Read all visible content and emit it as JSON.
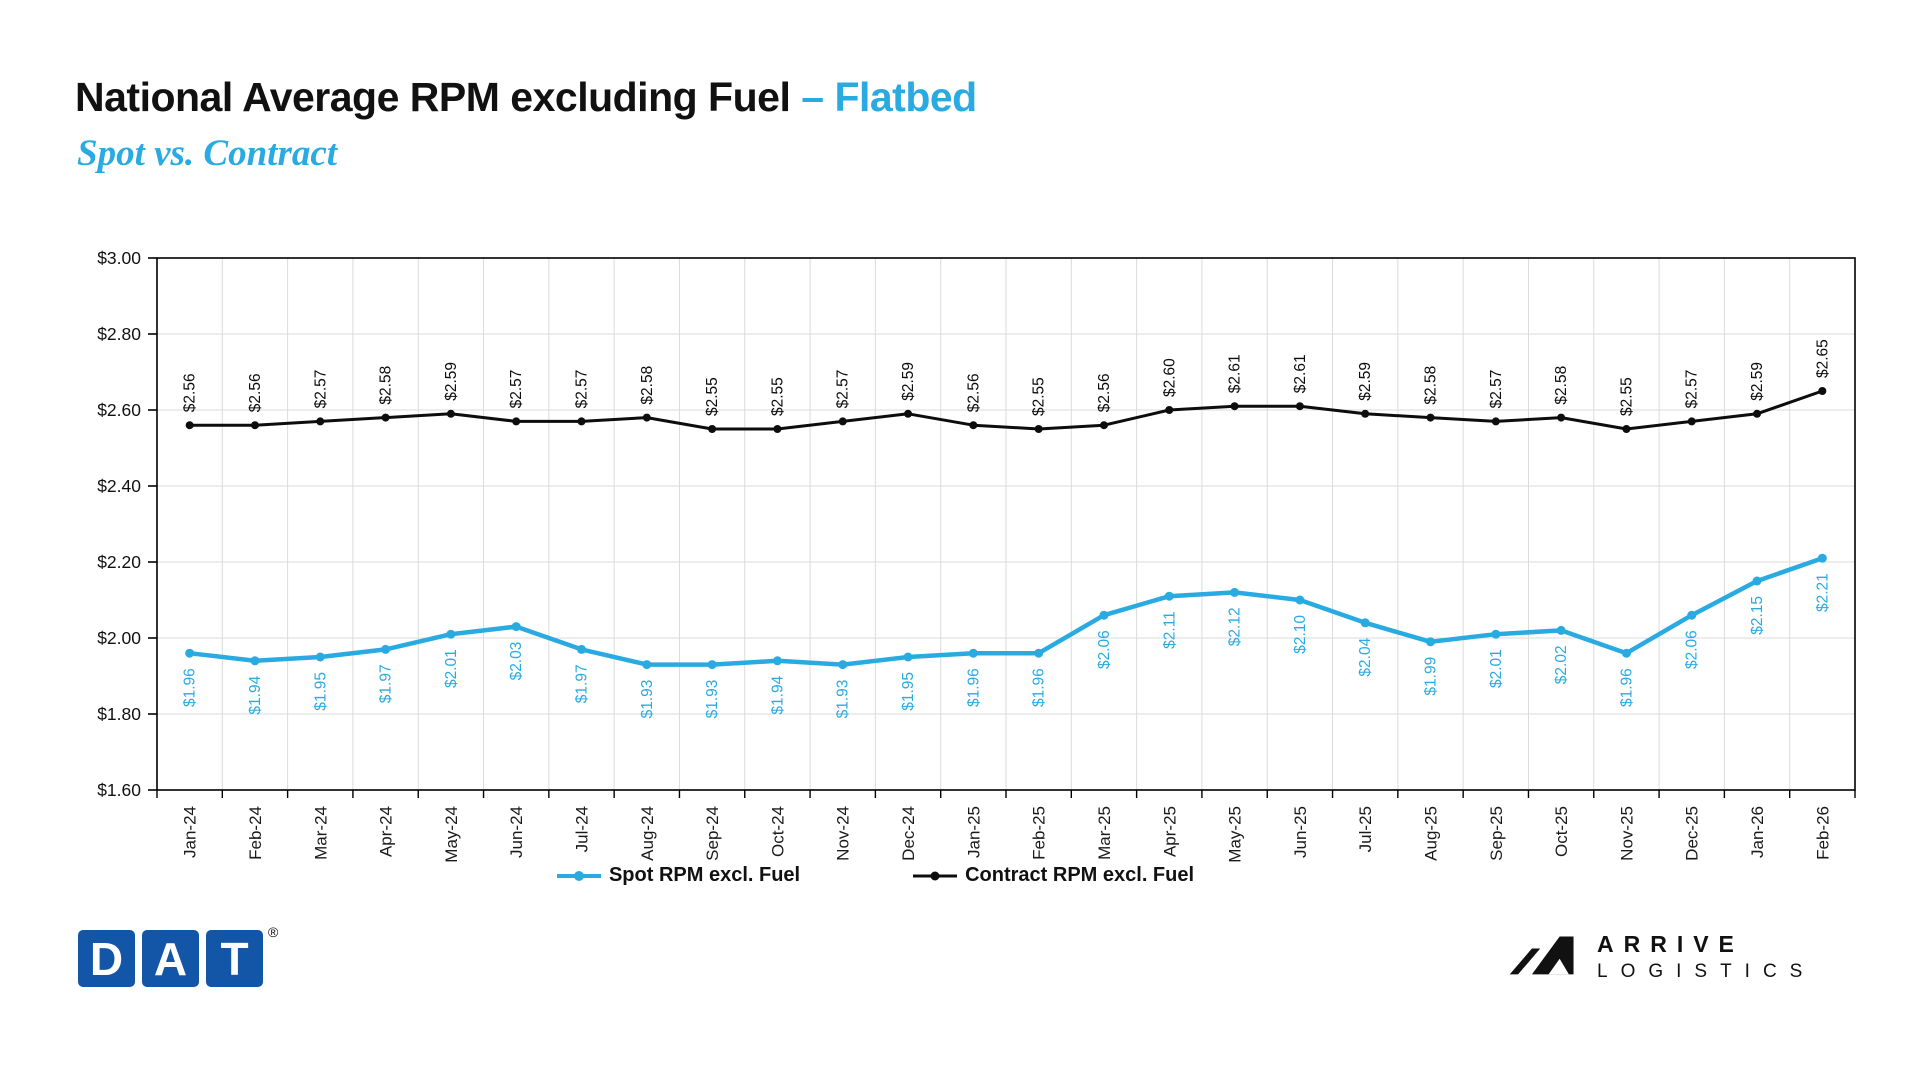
{
  "header": {
    "title_main": "National Average RPM excluding Fuel",
    "title_accent": "– Flatbed",
    "subtitle": "Spot vs. Contract"
  },
  "chart_data": {
    "type": "line",
    "title": "National Average RPM excluding Fuel – Flatbed",
    "subtitle": "Spot vs. Contract",
    "categories": [
      "Jan-24",
      "Feb-24",
      "Mar-24",
      "Apr-24",
      "May-24",
      "Jun-24",
      "Jul-24",
      "Aug-24",
      "Sep-24",
      "Oct-24",
      "Nov-24",
      "Dec-24",
      "Jan-25",
      "Feb-25",
      "Mar-25",
      "Apr-25",
      "May-25",
      "Jun-25",
      "Jul-25",
      "Aug-25",
      "Sep-25",
      "Oct-25",
      "Nov-25",
      "Dec-25",
      "Jan-26",
      "Feb-26"
    ],
    "series": [
      {
        "name": "Spot RPM excl. Fuel",
        "color": "#29ABE2",
        "labels_position": "below",
        "values": [
          1.96,
          1.94,
          1.95,
          1.97,
          2.01,
          2.03,
          1.97,
          1.93,
          1.93,
          1.94,
          1.93,
          1.95,
          1.96,
          1.96,
          2.06,
          2.11,
          2.12,
          2.1,
          2.04,
          1.99,
          2.01,
          2.02,
          1.96,
          2.06,
          2.15,
          2.21
        ]
      },
      {
        "name": "Contract RPM excl. Fuel",
        "color": "#0D0D0D",
        "labels_position": "above",
        "values": [
          2.56,
          2.56,
          2.57,
          2.58,
          2.59,
          2.57,
          2.57,
          2.58,
          2.55,
          2.55,
          2.57,
          2.59,
          2.56,
          2.55,
          2.56,
          2.6,
          2.61,
          2.61,
          2.59,
          2.58,
          2.57,
          2.58,
          2.55,
          2.57,
          2.59,
          2.65
        ]
      }
    ],
    "ylim": [
      1.6,
      3.0
    ],
    "ytick_step": 0.2,
    "ytick_labels": [
      "$1.60",
      "$1.80",
      "$2.00",
      "$2.20",
      "$2.40",
      "$2.60",
      "$2.80",
      "$3.00"
    ],
    "value_prefix": "$",
    "grid": true,
    "legend_position": "bottom"
  },
  "branding": {
    "dat_letters": [
      "D",
      "A",
      "T"
    ],
    "dat_registered": "®",
    "arrive_line1": "ARRIVE",
    "arrive_line2": "LOGISTICS"
  },
  "colors": {
    "accent": "#29ABE2",
    "spot": "#29ABE2",
    "contract": "#0D0D0D",
    "grid": "#DBDBDB",
    "axis": "#000000",
    "dat_blue": "#1356A8",
    "text": "#111111"
  }
}
